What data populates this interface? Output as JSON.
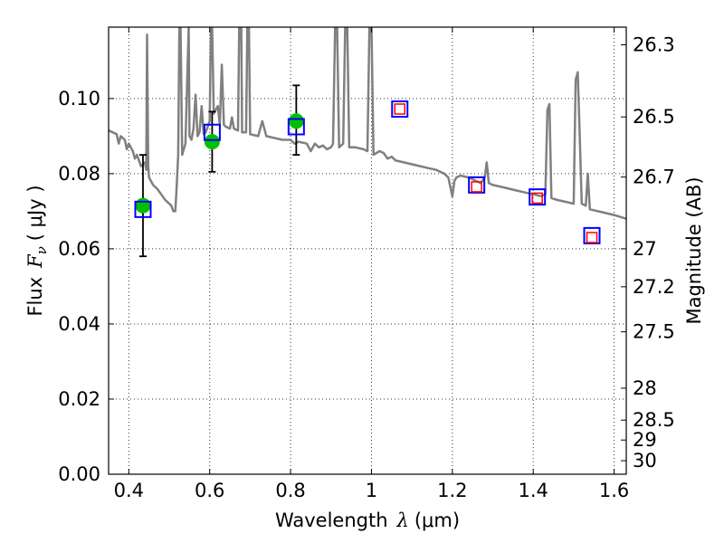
{
  "chart_data": {
    "type": "scatter",
    "xlabel_prefix": "Wavelength",
    "xlabel_symbol": "λ",
    "xlabel_unit": "(μm)",
    "ylabel_prefix": "Flux",
    "ylabel_symbol": "F",
    "ylabel_subscript": "ν",
    "ylabel_unit": "( μJy )",
    "y2label": "Magnitude (AB)",
    "xlim": [
      0.35,
      1.63
    ],
    "ylim": [
      0.0,
      0.119
    ],
    "xticks": [
      0.4,
      0.6,
      0.8,
      1.0,
      1.2,
      1.4,
      1.6
    ],
    "xtick_labels": [
      "0.4",
      "0.6",
      "0.8",
      "1",
      "1.2",
      "1.4",
      "1.6"
    ],
    "yticks": [
      0.0,
      0.02,
      0.04,
      0.06,
      0.08,
      0.1
    ],
    "ytick_labels": [
      "0.00",
      "0.02",
      "0.04",
      "0.06",
      "0.08",
      "0.10"
    ],
    "y2ticks": [
      {
        "label": "26.3",
        "flux": 0.1143
      },
      {
        "label": "26.5",
        "flux": 0.0951
      },
      {
        "label": "26.7",
        "flux": 0.0791
      },
      {
        "label": "27",
        "flux": 0.06
      },
      {
        "label": "27.2",
        "flux": 0.0499
      },
      {
        "label": "27.5",
        "flux": 0.0379
      },
      {
        "label": "28",
        "flux": 0.0229
      },
      {
        "label": "28.5",
        "flux": 0.0144
      },
      {
        "label": "29",
        "flux": 0.0091
      },
      {
        "label": "30",
        "flux": 0.0036
      }
    ],
    "grid": true,
    "colors": {
      "spectrum": "#808080",
      "observed": "#00c000",
      "model_box": "#0000ff",
      "model_small": "#ff0000",
      "errorbar": "#000000"
    },
    "series": [
      {
        "name": "model spectrum",
        "kind": "line",
        "points": [
          [
            0.35,
            0.0915
          ],
          [
            0.36,
            0.091
          ],
          [
            0.37,
            0.0905
          ],
          [
            0.375,
            0.088
          ],
          [
            0.38,
            0.09
          ],
          [
            0.39,
            0.089
          ],
          [
            0.395,
            0.0865
          ],
          [
            0.4,
            0.088
          ],
          [
            0.41,
            0.086
          ],
          [
            0.415,
            0.084
          ],
          [
            0.42,
            0.085
          ],
          [
            0.43,
            0.082
          ],
          [
            0.44,
            0.083
          ],
          [
            0.443,
            0.081
          ],
          [
            0.445,
            0.117
          ],
          [
            0.448,
            0.082
          ],
          [
            0.45,
            0.079
          ],
          [
            0.46,
            0.077
          ],
          [
            0.47,
            0.076
          ],
          [
            0.48,
            0.0745
          ],
          [
            0.49,
            0.073
          ],
          [
            0.5,
            0.072
          ],
          [
            0.505,
            0.0715
          ],
          [
            0.51,
            0.07
          ],
          [
            0.515,
            0.07
          ],
          [
            0.518,
            0.076
          ],
          [
            0.522,
            0.085
          ],
          [
            0.525,
            0.119
          ],
          [
            0.528,
            0.119
          ],
          [
            0.532,
            0.085
          ],
          [
            0.54,
            0.088
          ],
          [
            0.545,
            0.107
          ],
          [
            0.548,
            0.119
          ],
          [
            0.55,
            0.09
          ],
          [
            0.555,
            0.089
          ],
          [
            0.56,
            0.092
          ],
          [
            0.565,
            0.101
          ],
          [
            0.57,
            0.09
          ],
          [
            0.575,
            0.091
          ],
          [
            0.58,
            0.098
          ],
          [
            0.585,
            0.0905
          ],
          [
            0.59,
            0.091
          ],
          [
            0.6,
            0.094
          ],
          [
            0.603,
            0.119
          ],
          [
            0.606,
            0.119
          ],
          [
            0.61,
            0.096
          ],
          [
            0.62,
            0.098
          ],
          [
            0.625,
            0.093
          ],
          [
            0.63,
            0.109
          ],
          [
            0.635,
            0.093
          ],
          [
            0.64,
            0.0925
          ],
          [
            0.65,
            0.092
          ],
          [
            0.655,
            0.095
          ],
          [
            0.66,
            0.092
          ],
          [
            0.67,
            0.0915
          ],
          [
            0.673,
            0.119
          ],
          [
            0.678,
            0.119
          ],
          [
            0.68,
            0.091
          ],
          [
            0.69,
            0.091
          ],
          [
            0.693,
            0.119
          ],
          [
            0.697,
            0.119
          ],
          [
            0.7,
            0.0905
          ],
          [
            0.72,
            0.09
          ],
          [
            0.73,
            0.094
          ],
          [
            0.74,
            0.09
          ],
          [
            0.76,
            0.0895
          ],
          [
            0.78,
            0.089
          ],
          [
            0.8,
            0.089
          ],
          [
            0.81,
            0.088
          ],
          [
            0.82,
            0.0885
          ],
          [
            0.84,
            0.088
          ],
          [
            0.85,
            0.086
          ],
          [
            0.86,
            0.088
          ],
          [
            0.87,
            0.087
          ],
          [
            0.88,
            0.0875
          ],
          [
            0.89,
            0.0865
          ],
          [
            0.9,
            0.087
          ],
          [
            0.905,
            0.088
          ],
          [
            0.91,
            0.119
          ],
          [
            0.915,
            0.119
          ],
          [
            0.92,
            0.087
          ],
          [
            0.93,
            0.088
          ],
          [
            0.935,
            0.119
          ],
          [
            0.94,
            0.119
          ],
          [
            0.945,
            0.087
          ],
          [
            0.96,
            0.087
          ],
          [
            0.98,
            0.0865
          ],
          [
            0.99,
            0.086
          ],
          [
            0.995,
            0.119
          ],
          [
            1.0,
            0.119
          ],
          [
            1.005,
            0.085
          ],
          [
            1.02,
            0.086
          ],
          [
            1.03,
            0.0855
          ],
          [
            1.04,
            0.084
          ],
          [
            1.05,
            0.0845
          ],
          [
            1.06,
            0.0835
          ],
          [
            1.08,
            0.083
          ],
          [
            1.1,
            0.0825
          ],
          [
            1.12,
            0.082
          ],
          [
            1.14,
            0.0815
          ],
          [
            1.16,
            0.081
          ],
          [
            1.18,
            0.08
          ],
          [
            1.19,
            0.079
          ],
          [
            1.2,
            0.074
          ],
          [
            1.205,
            0.078
          ],
          [
            1.21,
            0.079
          ],
          [
            1.22,
            0.0795
          ],
          [
            1.24,
            0.079
          ],
          [
            1.25,
            0.0785
          ],
          [
            1.26,
            0.078
          ],
          [
            1.27,
            0.0775
          ],
          [
            1.28,
            0.079
          ],
          [
            1.285,
            0.083
          ],
          [
            1.29,
            0.0775
          ],
          [
            1.3,
            0.077
          ],
          [
            1.32,
            0.0765
          ],
          [
            1.34,
            0.076
          ],
          [
            1.36,
            0.0755
          ],
          [
            1.38,
            0.075
          ],
          [
            1.4,
            0.0745
          ],
          [
            1.42,
            0.074
          ],
          [
            1.43,
            0.0745
          ],
          [
            1.435,
            0.097
          ],
          [
            1.44,
            0.0985
          ],
          [
            1.445,
            0.0735
          ],
          [
            1.46,
            0.073
          ],
          [
            1.48,
            0.0725
          ],
          [
            1.5,
            0.072
          ],
          [
            1.505,
            0.105
          ],
          [
            1.51,
            0.107
          ],
          [
            1.515,
            0.09
          ],
          [
            1.52,
            0.072
          ],
          [
            1.53,
            0.0715
          ],
          [
            1.535,
            0.08
          ],
          [
            1.54,
            0.0705
          ],
          [
            1.56,
            0.07
          ],
          [
            1.58,
            0.0695
          ],
          [
            1.6,
            0.069
          ],
          [
            1.63,
            0.068
          ]
        ]
      },
      {
        "name": "observed photometry",
        "kind": "points",
        "marker": "circle",
        "points": [
          {
            "x": 0.435,
            "y": 0.0715,
            "yerr_low": 0.058,
            "yerr_high": 0.085
          },
          {
            "x": 0.606,
            "y": 0.0885,
            "yerr_low": 0.0805,
            "yerr_high": 0.0965
          },
          {
            "x": 0.814,
            "y": 0.094,
            "yerr_low": 0.085,
            "yerr_high": 0.1035
          }
        ]
      },
      {
        "name": "model photometry (large)",
        "kind": "points",
        "marker": "square",
        "points": [
          {
            "x": 0.435,
            "y": 0.0705
          },
          {
            "x": 0.606,
            "y": 0.091
          },
          {
            "x": 0.814,
            "y": 0.0925
          },
          {
            "x": 1.07,
            "y": 0.0972
          },
          {
            "x": 1.26,
            "y": 0.077
          },
          {
            "x": 1.41,
            "y": 0.0738
          },
          {
            "x": 1.545,
            "y": 0.0635
          }
        ]
      },
      {
        "name": "model photometry (small)",
        "kind": "points",
        "marker": "square",
        "points": [
          {
            "x": 1.07,
            "y": 0.0972
          },
          {
            "x": 1.26,
            "y": 0.0765
          },
          {
            "x": 1.41,
            "y": 0.0735
          },
          {
            "x": 1.545,
            "y": 0.063
          }
        ]
      }
    ]
  }
}
